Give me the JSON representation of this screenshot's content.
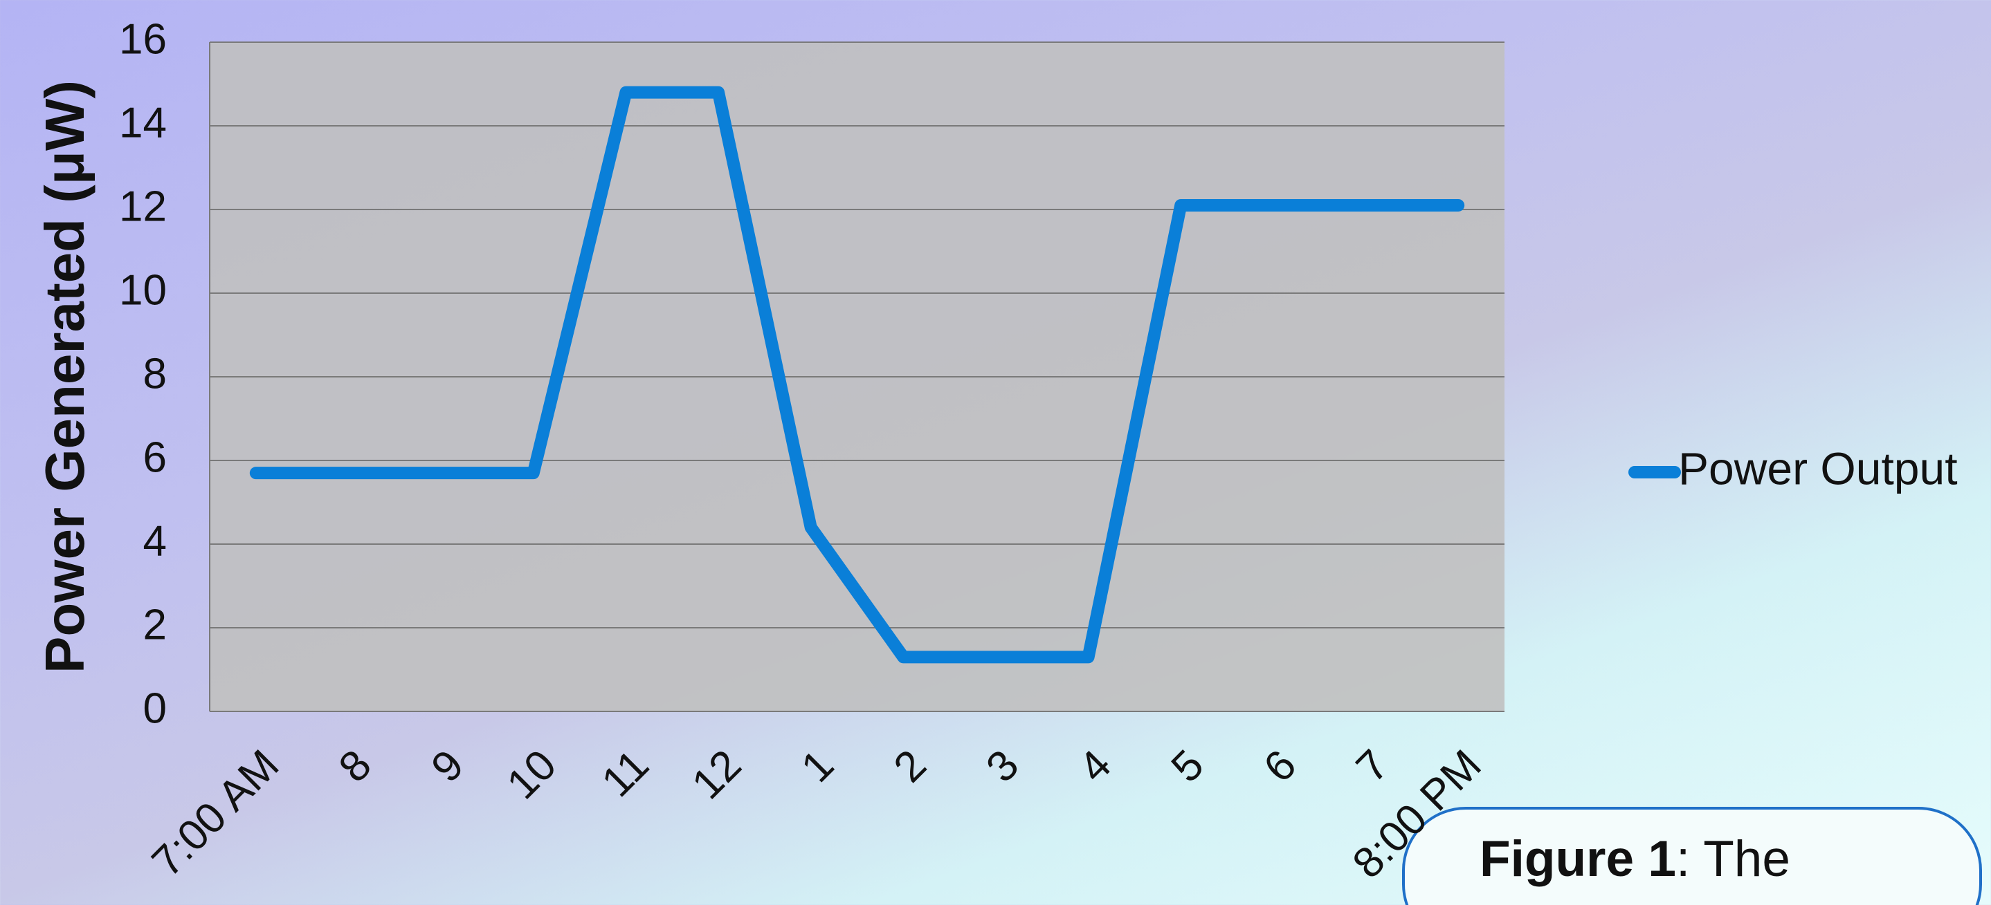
{
  "chart_data": {
    "type": "line",
    "y_label": "Power Generated (μW)",
    "categories": [
      "7:00 AM",
      "8",
      "9",
      "10",
      "11",
      "12",
      "1",
      "2",
      "3",
      "4",
      "5",
      "6",
      "7",
      "8:00 PM"
    ],
    "series": [
      {
        "name": "Power Output",
        "color": "#0a7fd8",
        "values": [
          5.7,
          5.7,
          5.7,
          5.7,
          14.8,
          14.8,
          4.4,
          1.3,
          1.3,
          1.3,
          12.1,
          12.1,
          12.1,
          12.1
        ]
      }
    ],
    "ylim": [
      0,
      16
    ],
    "yticks": [
      0,
      2,
      4,
      6,
      8,
      10,
      12,
      14,
      16
    ],
    "grid": true,
    "legend": "right"
  },
  "caption": {
    "label": "Figure 1",
    "text": ": The"
  }
}
